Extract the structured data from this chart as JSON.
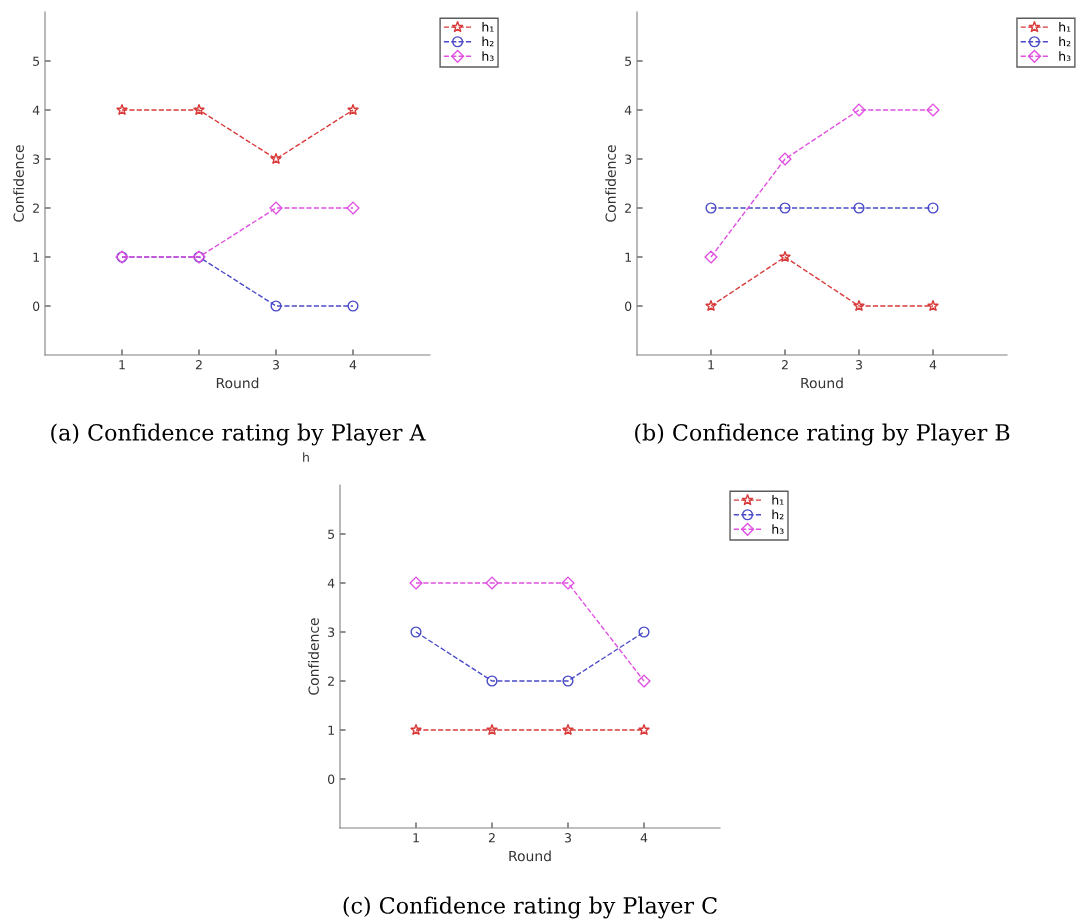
{
  "chart_data": [
    {
      "type": "line",
      "title": "(a) Confidence rating by Player A",
      "xlabel": "Round",
      "ylabel": "Confidence",
      "x": [
        1,
        2,
        3,
        4
      ],
      "xlim": [
        0,
        5
      ],
      "ylim": [
        -1,
        6
      ],
      "xticks": [
        1,
        2,
        3,
        4
      ],
      "yticks": [
        0,
        1,
        2,
        3,
        4,
        5
      ],
      "legend": "top right",
      "line_style": "dashed",
      "grid": false,
      "series": [
        {
          "name": "h₁",
          "color": "#d83a3a",
          "marker": "star",
          "values": [
            4,
            4,
            3,
            4
          ]
        },
        {
          "name": "h₂",
          "color": "#4a4ac8",
          "marker": "circle",
          "values": [
            1,
            1,
            0,
            0
          ]
        },
        {
          "name": "h₃",
          "color": "#e050e0",
          "marker": "diamond",
          "values": [
            1,
            1,
            2,
            2
          ]
        }
      ]
    },
    {
      "type": "line",
      "title": "(b) Confidence rating by Player B",
      "xlabel": "Round",
      "ylabel": "Confidence",
      "x": [
        1,
        2,
        3,
        4
      ],
      "xlim": [
        0,
        5
      ],
      "ylim": [
        -1,
        6
      ],
      "xticks": [
        1,
        2,
        3,
        4
      ],
      "yticks": [
        0,
        1,
        2,
        3,
        4,
        5
      ],
      "legend": "top right",
      "line_style": "dashed",
      "grid": false,
      "series": [
        {
          "name": "h₁",
          "color": "#d83a3a",
          "marker": "star",
          "values": [
            0,
            1,
            0,
            0
          ]
        },
        {
          "name": "h₂",
          "color": "#4a4ac8",
          "marker": "circle",
          "values": [
            2,
            2,
            2,
            2
          ]
        },
        {
          "name": "h₃",
          "color": "#e050e0",
          "marker": "diamond",
          "values": [
            1,
            3,
            4,
            4
          ]
        }
      ]
    },
    {
      "type": "line",
      "title": "(c) Confidence rating by Player C",
      "xlabel": "Round",
      "ylabel": "Confidence",
      "x": [
        1,
        2,
        3,
        4
      ],
      "xlim": [
        0,
        5
      ],
      "ylim": [
        -1,
        6
      ],
      "xticks": [
        1,
        2,
        3,
        4
      ],
      "yticks": [
        0,
        1,
        2,
        3,
        4,
        5
      ],
      "legend": "top right",
      "line_style": "dashed",
      "grid": false,
      "annotations": [
        "h"
      ],
      "series": [
        {
          "name": "h₁",
          "color": "#d83a3a",
          "marker": "star",
          "values": [
            1,
            1,
            1,
            1
          ]
        },
        {
          "name": "h₂",
          "color": "#4a4ac8",
          "marker": "circle",
          "values": [
            3,
            2,
            2,
            3
          ]
        },
        {
          "name": "h₃",
          "color": "#e050e0",
          "marker": "diamond",
          "values": [
            4,
            4,
            4,
            2
          ]
        }
      ]
    }
  ]
}
